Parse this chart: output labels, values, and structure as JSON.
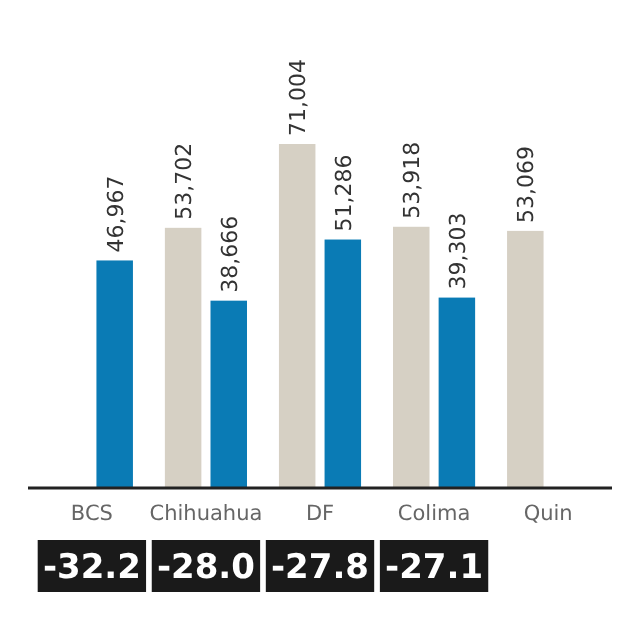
{
  "chart_data": {
    "type": "bar",
    "categories": [
      "BCS",
      "Chihuahua",
      "DF",
      "Colima",
      "Quin"
    ],
    "series": [
      {
        "color": "#d6d0c4",
        "values": [
          null,
          53702,
          71004,
          53918,
          53069
        ],
        "value_labels": [
          null,
          "53,702",
          "71,004",
          "53,918",
          "53,069"
        ]
      },
      {
        "color": "#0a7bb5",
        "values": [
          46967,
          38666,
          51286,
          39303,
          null
        ],
        "value_labels": [
          "46,967",
          "38,666",
          "51,286",
          "39,303",
          null
        ]
      }
    ],
    "tick_labels": "x",
    "annotations": [
      "-32.2",
      "-28.0",
      "-27.8",
      "-27.1"
    ]
  }
}
